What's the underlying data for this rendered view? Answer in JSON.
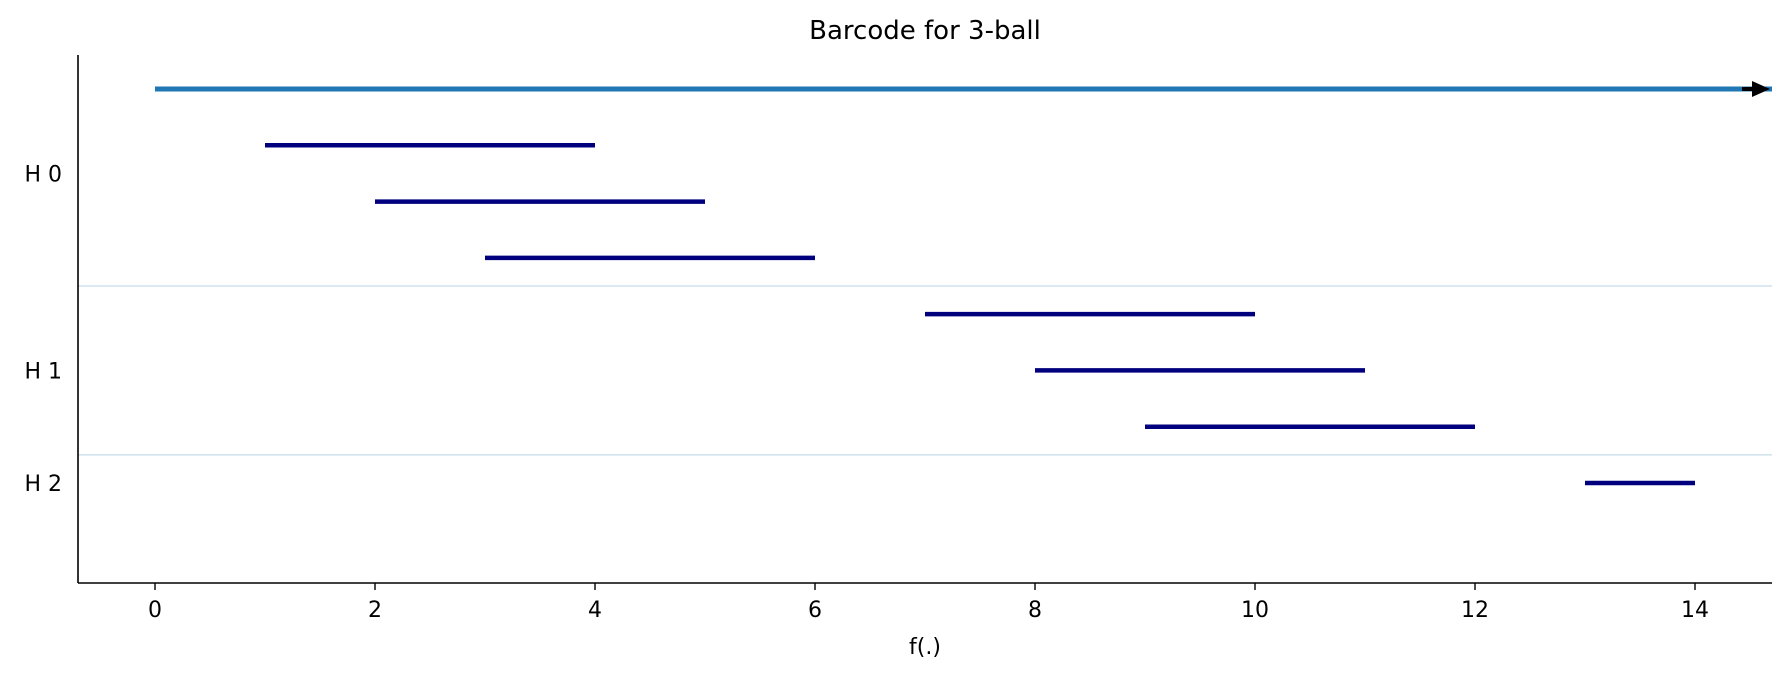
{
  "chart_data": {
    "type": "barcode",
    "title": "Barcode for 3-ball",
    "xlabel": "f(.)",
    "ylabel": "",
    "xlim": [
      -0.7,
      14.7
    ],
    "xticks": [
      0,
      2,
      4,
      6,
      8,
      10,
      12,
      14
    ],
    "groups": [
      {
        "label": "H 0",
        "bars": [
          {
            "birth": 0,
            "death": null,
            "infinite": true
          },
          {
            "birth": 1,
            "death": 4
          },
          {
            "birth": 2,
            "death": 5
          },
          {
            "birth": 3,
            "death": 6
          }
        ]
      },
      {
        "label": "H 1",
        "bars": [
          {
            "birth": 7,
            "death": 10
          },
          {
            "birth": 8,
            "death": 11
          },
          {
            "birth": 9,
            "death": 12
          }
        ]
      },
      {
        "label": "H 2",
        "bars": [
          {
            "birth": 13,
            "death": 14
          }
        ]
      }
    ],
    "colors": {
      "finite_bar": "#00007f",
      "infinite_bar": "#1f77b4",
      "arrow": "#000000",
      "separator": "#c6dbe9",
      "axis": "#000000"
    }
  }
}
